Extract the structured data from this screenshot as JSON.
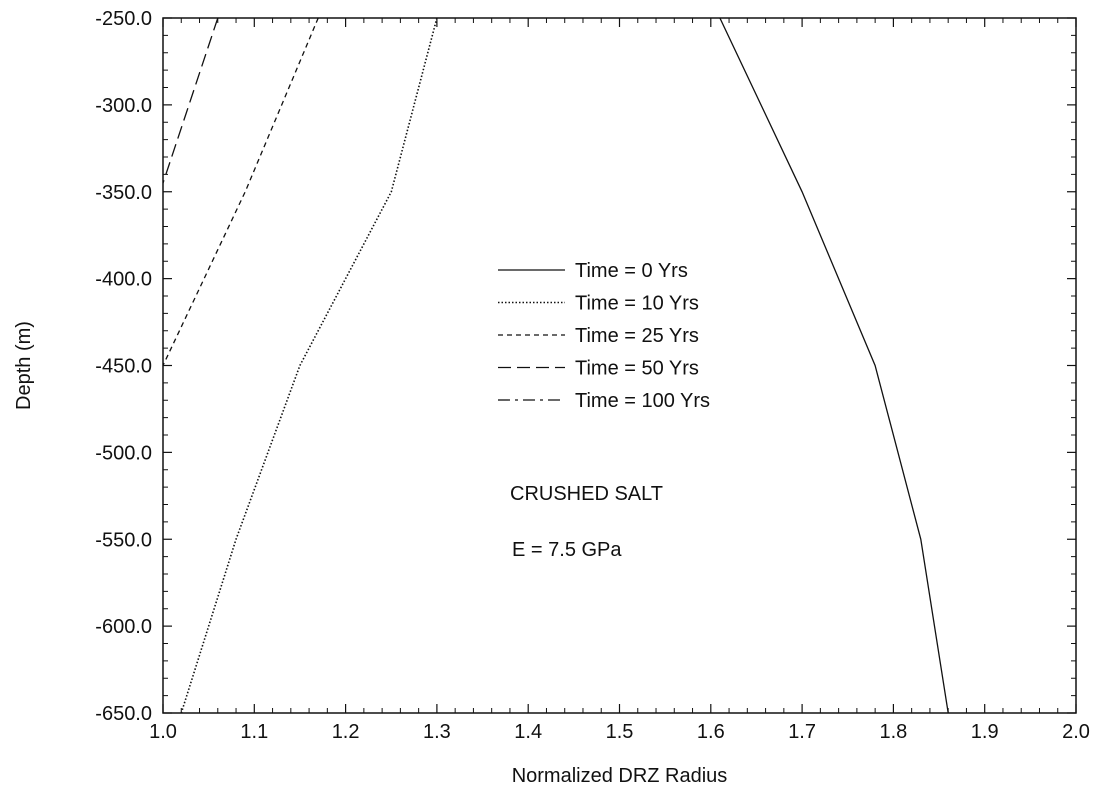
{
  "chart_data": {
    "type": "line",
    "xlabel": "Normalized DRZ Radius",
    "ylabel": "Depth (m)",
    "xlim": [
      1.0,
      2.0
    ],
    "ylim": [
      -650.0,
      -250.0
    ],
    "x_ticks": [
      "1.0",
      "1.1",
      "1.2",
      "1.3",
      "1.4",
      "1.5",
      "1.6",
      "1.7",
      "1.8",
      "1.9",
      "2.0"
    ],
    "y_ticks": [
      "-250.0",
      "-300.0",
      "-350.0",
      "-400.0",
      "-450.0",
      "-500.0",
      "-550.0",
      "-600.0",
      "-650.0"
    ],
    "legend_position": "center",
    "grid": false,
    "series": [
      {
        "name": "Time = 0 Yrs",
        "style": "solid",
        "points": [
          [
            1.61,
            -250
          ],
          [
            1.7,
            -350
          ],
          [
            1.78,
            -450
          ],
          [
            1.83,
            -550
          ],
          [
            1.86,
            -650
          ]
        ]
      },
      {
        "name": "Time = 10 Yrs",
        "style": "dotted",
        "points": [
          [
            1.3,
            -250
          ],
          [
            1.25,
            -350
          ],
          [
            1.15,
            -450
          ],
          [
            1.08,
            -550
          ],
          [
            1.02,
            -650
          ]
        ]
      },
      {
        "name": "Time = 25 Yrs",
        "style": "short-dash",
        "points": [
          [
            1.17,
            -250
          ],
          [
            1.09,
            -350
          ],
          [
            1.0,
            -450
          ]
        ]
      },
      {
        "name": "Time = 50 Yrs",
        "style": "long-dash",
        "points": [
          [
            1.06,
            -250
          ],
          [
            1.0,
            -345
          ]
        ]
      },
      {
        "name": "Time = 100 Yrs",
        "style": "dash-dot",
        "points": []
      }
    ],
    "annotations": [
      "CRUSHED SALT",
      "E = 7.5 GPa"
    ]
  }
}
